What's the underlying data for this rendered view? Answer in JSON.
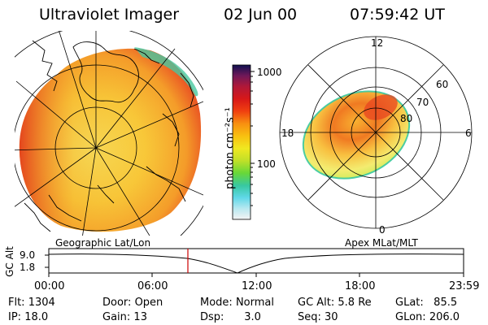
{
  "header": {
    "instrument": "Ultraviolet Imager",
    "date": "02 Jun 00",
    "time": "07:59:42 UT"
  },
  "colorbar": {
    "unit_label": "photon cm⁻²s⁻¹",
    "ticks": [
      "1000",
      "100"
    ],
    "scale": "log",
    "colors": [
      "#f4f4f4",
      "#b8e8f0",
      "#60d8e8",
      "#38c8a0",
      "#68d838",
      "#c0e028",
      "#f0e820",
      "#f8c010",
      "#f89010",
      "#f04010",
      "#d81818",
      "#b01838",
      "#701858",
      "#101050"
    ]
  },
  "geo_panel": {
    "label": "Geographic Lat/Lon",
    "image_palette": {
      "low": "#f0e060",
      "mid": "#f8b030",
      "high": "#e84020",
      "edge": "#48c8a0"
    }
  },
  "polar_panel": {
    "label": "Apex MLat/MLT",
    "mlt_labels": [
      "12",
      "18",
      "6",
      "0"
    ],
    "mlat_labels": [
      "60",
      "70",
      "80"
    ]
  },
  "altitude_plot": {
    "ylabel": "GC Alt",
    "yticks": [
      "9.0",
      "1.8"
    ],
    "xticks": [
      "00:00",
      "06:00",
      "12:00",
      "18:00",
      "23:59"
    ],
    "cursor_time": "07:59:42",
    "cursor_color": "#cc0000"
  },
  "status": {
    "rows": [
      [
        {
          "label": "Flt:",
          "value": "1304"
        },
        {
          "label": "Door:",
          "value": "Open"
        },
        {
          "label": "Mode:",
          "value": "Normal"
        },
        {
          "label": "GC Alt:",
          "value": "5.8 Re"
        },
        {
          "label": "GLat:",
          "value": "85.5"
        }
      ],
      [
        {
          "label": "IP:",
          "value": "18.0"
        },
        {
          "label": "Gain:",
          "value": "13"
        },
        {
          "label": "Dsp:",
          "value": "3.0"
        },
        {
          "label": "Seq:",
          "value": "30"
        },
        {
          "label": "GLon:",
          "value": "206.0"
        }
      ]
    ]
  }
}
